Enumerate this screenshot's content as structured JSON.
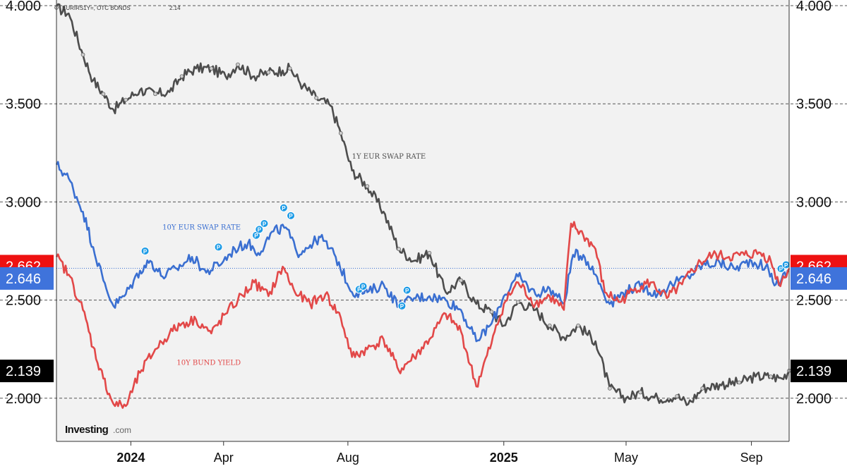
{
  "header": {
    "symbol_text": "EURIRS1Y=, OTC BONDS",
    "value_text": "2.14"
  },
  "logo": {
    "name": "Investing",
    "suffix": ".com"
  },
  "chart_data": {
    "type": "line",
    "y_ticks": [
      "4.000",
      "3.500",
      "3.000",
      "2.500",
      "2.000"
    ],
    "ylim": [
      1.78,
      4.0
    ],
    "x_ticks": [
      {
        "label": "2024",
        "date": "2024-01-01",
        "bold": true
      },
      {
        "label": "Apr",
        "date": "2024-04-01",
        "bold": false
      },
      {
        "label": "Aug",
        "date": "2024-08-01",
        "bold": false
      },
      {
        "label": "2025",
        "date": "2025-01-01",
        "bold": true
      },
      {
        "label": "May",
        "date": "2025-05-01",
        "bold": false
      },
      {
        "label": "Sep",
        "date": "2025-09-01",
        "bold": false
      }
    ],
    "xlim": [
      "2023-10-20",
      "2025-10-08"
    ],
    "grid": true,
    "series": [
      {
        "name": "1Y EUR SWAP RATE",
        "color": "#4d4d4d",
        "last_value": "2.139",
        "badge_color": "#000000",
        "points": [
          [
            "2023-10-20",
            3.99
          ],
          [
            "2023-11-01",
            3.96
          ],
          [
            "2023-11-15",
            3.75
          ],
          [
            "2023-11-25",
            3.62
          ],
          [
            "2023-12-05",
            3.55
          ],
          [
            "2023-12-15",
            3.47
          ],
          [
            "2023-12-27",
            3.52
          ],
          [
            "2024-01-10",
            3.57
          ],
          [
            "2024-01-25",
            3.55
          ],
          [
            "2024-02-08",
            3.56
          ],
          [
            "2024-02-20",
            3.64
          ],
          [
            "2024-03-05",
            3.68
          ],
          [
            "2024-03-20",
            3.68
          ],
          [
            "2024-04-03",
            3.64
          ],
          [
            "2024-04-15",
            3.7
          ],
          [
            "2024-05-01",
            3.64
          ],
          [
            "2024-05-15",
            3.66
          ],
          [
            "2024-05-29",
            3.67
          ],
          [
            "2024-06-05",
            3.68
          ],
          [
            "2024-06-18",
            3.59
          ],
          [
            "2024-07-01",
            3.53
          ],
          [
            "2024-07-15",
            3.49
          ],
          [
            "2024-07-25",
            3.35
          ],
          [
            "2024-08-05",
            3.16
          ],
          [
            "2024-08-20",
            3.08
          ],
          [
            "2024-09-05",
            2.95
          ],
          [
            "2024-09-20",
            2.76
          ],
          [
            "2024-10-05",
            2.7
          ],
          [
            "2024-10-20",
            2.74
          ],
          [
            "2024-11-05",
            2.54
          ],
          [
            "2024-11-20",
            2.6
          ],
          [
            "2024-12-05",
            2.48
          ],
          [
            "2024-12-20",
            2.44
          ],
          [
            "2025-01-01",
            2.37
          ],
          [
            "2025-01-15",
            2.49
          ],
          [
            "2025-02-01",
            2.45
          ],
          [
            "2025-02-15",
            2.37
          ],
          [
            "2025-03-01",
            2.31
          ],
          [
            "2025-03-15",
            2.37
          ],
          [
            "2025-04-01",
            2.29
          ],
          [
            "2025-04-15",
            2.05
          ],
          [
            "2025-05-01",
            2.0
          ],
          [
            "2025-05-15",
            2.03
          ],
          [
            "2025-06-01",
            2.0
          ],
          [
            "2025-06-20",
            2.01
          ],
          [
            "2025-07-01",
            1.97
          ],
          [
            "2025-07-15",
            2.05
          ],
          [
            "2025-08-01",
            2.07
          ],
          [
            "2025-08-20",
            2.08
          ],
          [
            "2025-09-05",
            2.11
          ],
          [
            "2025-09-20",
            2.11
          ],
          [
            "2025-10-01",
            2.1
          ],
          [
            "2025-10-08",
            2.14
          ]
        ]
      },
      {
        "name": "10Y EUR SWAP RATE",
        "color": "#3a6fd1",
        "last_value": "2.646",
        "badge_color": "#3f73db",
        "points": [
          [
            "2023-10-20",
            3.19
          ],
          [
            "2023-11-01",
            3.12
          ],
          [
            "2023-11-15",
            2.95
          ],
          [
            "2023-11-25",
            2.77
          ],
          [
            "2023-12-05",
            2.6
          ],
          [
            "2023-12-15",
            2.47
          ],
          [
            "2023-12-27",
            2.53
          ],
          [
            "2024-01-10",
            2.65
          ],
          [
            "2024-01-20",
            2.7
          ],
          [
            "2024-02-01",
            2.62
          ],
          [
            "2024-02-15",
            2.66
          ],
          [
            "2024-03-01",
            2.72
          ],
          [
            "2024-03-15",
            2.64
          ],
          [
            "2024-04-01",
            2.7
          ],
          [
            "2024-04-12",
            2.76
          ],
          [
            "2024-04-25",
            2.79
          ],
          [
            "2024-05-05",
            2.74
          ],
          [
            "2024-05-20",
            2.85
          ],
          [
            "2024-06-01",
            2.87
          ],
          [
            "2024-06-12",
            2.74
          ],
          [
            "2024-06-25",
            2.78
          ],
          [
            "2024-07-05",
            2.82
          ],
          [
            "2024-07-20",
            2.72
          ],
          [
            "2024-08-05",
            2.54
          ],
          [
            "2024-08-20",
            2.54
          ],
          [
            "2024-09-05",
            2.58
          ],
          [
            "2024-09-20",
            2.47
          ],
          [
            "2024-10-05",
            2.51
          ],
          [
            "2024-10-20",
            2.52
          ],
          [
            "2024-11-05",
            2.5
          ],
          [
            "2024-11-20",
            2.45
          ],
          [
            "2024-12-05",
            2.29
          ],
          [
            "2024-12-20",
            2.38
          ],
          [
            "2025-01-01",
            2.52
          ],
          [
            "2025-01-15",
            2.62
          ],
          [
            "2025-02-01",
            2.53
          ],
          [
            "2025-02-15",
            2.56
          ],
          [
            "2025-03-01",
            2.48
          ],
          [
            "2025-03-10",
            2.73
          ],
          [
            "2025-03-20",
            2.73
          ],
          [
            "2025-04-01",
            2.63
          ],
          [
            "2025-04-15",
            2.48
          ],
          [
            "2025-05-01",
            2.55
          ],
          [
            "2025-05-15",
            2.57
          ],
          [
            "2025-06-01",
            2.53
          ],
          [
            "2025-06-15",
            2.58
          ],
          [
            "2025-07-01",
            2.62
          ],
          [
            "2025-07-15",
            2.68
          ],
          [
            "2025-08-01",
            2.69
          ],
          [
            "2025-08-15",
            2.66
          ],
          [
            "2025-09-01",
            2.7
          ],
          [
            "2025-09-15",
            2.67
          ],
          [
            "2025-09-25",
            2.58
          ],
          [
            "2025-10-08",
            2.646
          ]
        ]
      },
      {
        "name": "10Y BUND YIELD",
        "color": "#e24848",
        "last_value": "2.662",
        "badge_color": "#ee1111",
        "points": [
          [
            "2023-10-20",
            2.72
          ],
          [
            "2023-11-01",
            2.63
          ],
          [
            "2023-11-15",
            2.45
          ],
          [
            "2023-11-25",
            2.26
          ],
          [
            "2023-12-05",
            2.1
          ],
          [
            "2023-12-15",
            1.97
          ],
          [
            "2023-12-27",
            1.96
          ],
          [
            "2024-01-10",
            2.13
          ],
          [
            "2024-01-25",
            2.25
          ],
          [
            "2024-02-08",
            2.33
          ],
          [
            "2024-02-20",
            2.38
          ],
          [
            "2024-03-05",
            2.4
          ],
          [
            "2024-03-20",
            2.33
          ],
          [
            "2024-04-03",
            2.43
          ],
          [
            "2024-04-15",
            2.5
          ],
          [
            "2024-05-01",
            2.59
          ],
          [
            "2024-05-15",
            2.52
          ],
          [
            "2024-05-29",
            2.67
          ],
          [
            "2024-06-10",
            2.54
          ],
          [
            "2024-06-25",
            2.48
          ],
          [
            "2024-07-10",
            2.53
          ],
          [
            "2024-07-25",
            2.41
          ],
          [
            "2024-08-05",
            2.21
          ],
          [
            "2024-08-20",
            2.25
          ],
          [
            "2024-09-05",
            2.3
          ],
          [
            "2024-09-20",
            2.14
          ],
          [
            "2024-10-05",
            2.21
          ],
          [
            "2024-10-20",
            2.3
          ],
          [
            "2024-11-05",
            2.43
          ],
          [
            "2024-11-20",
            2.34
          ],
          [
            "2024-12-05",
            2.06
          ],
          [
            "2024-12-20",
            2.28
          ],
          [
            "2025-01-01",
            2.48
          ],
          [
            "2025-01-15",
            2.59
          ],
          [
            "2025-02-01",
            2.48
          ],
          [
            "2025-02-15",
            2.52
          ],
          [
            "2025-03-01",
            2.45
          ],
          [
            "2025-03-08",
            2.89
          ],
          [
            "2025-03-20",
            2.83
          ],
          [
            "2025-04-01",
            2.76
          ],
          [
            "2025-04-10",
            2.54
          ],
          [
            "2025-04-25",
            2.49
          ],
          [
            "2025-05-10",
            2.56
          ],
          [
            "2025-05-25",
            2.59
          ],
          [
            "2025-06-10",
            2.51
          ],
          [
            "2025-06-25",
            2.58
          ],
          [
            "2025-07-10",
            2.68
          ],
          [
            "2025-07-25",
            2.73
          ],
          [
            "2025-08-10",
            2.72
          ],
          [
            "2025-08-25",
            2.73
          ],
          [
            "2025-09-10",
            2.74
          ],
          [
            "2025-09-20",
            2.7
          ],
          [
            "2025-09-28",
            2.58
          ],
          [
            "2025-10-08",
            2.662
          ]
        ]
      }
    ],
    "series_labels_annotation": [
      {
        "text": "1Y EUR SWAP RATE",
        "series": 0,
        "date": "2024-08-05",
        "y": 3.22
      },
      {
        "text": "10Y EUR SWAP RATE",
        "series": 1,
        "date": "2024-02-01",
        "y": 2.86
      },
      {
        "text": "10Y BUND YIELD",
        "series": 2,
        "date": "2024-02-15",
        "y": 2.17
      }
    ],
    "event_markers": [
      {
        "label": "P",
        "date": "2024-01-15",
        "y": 2.75
      },
      {
        "label": "P",
        "date": "2024-03-27",
        "y": 2.77
      },
      {
        "label": "P",
        "date": "2024-05-03",
        "y": 2.83
      },
      {
        "label": "P",
        "date": "2024-05-06",
        "y": 2.86
      },
      {
        "label": "P",
        "date": "2024-05-11",
        "y": 2.89
      },
      {
        "label": "P",
        "date": "2024-05-30",
        "y": 2.97
      },
      {
        "label": "P",
        "date": "2024-06-06",
        "y": 2.93
      },
      {
        "label": "P",
        "date": "2024-08-12",
        "y": 2.555
      },
      {
        "label": "P",
        "date": "2024-08-16",
        "y": 2.57
      },
      {
        "label": "P",
        "date": "2024-09-23",
        "y": 2.47
      },
      {
        "label": "P",
        "date": "2024-09-28",
        "y": 2.55
      },
      {
        "label": "P",
        "date": "2025-09-30",
        "y": 2.66
      },
      {
        "label": "P",
        "date": "2025-10-05",
        "y": 2.68
      }
    ],
    "reference_line": 2.662
  }
}
